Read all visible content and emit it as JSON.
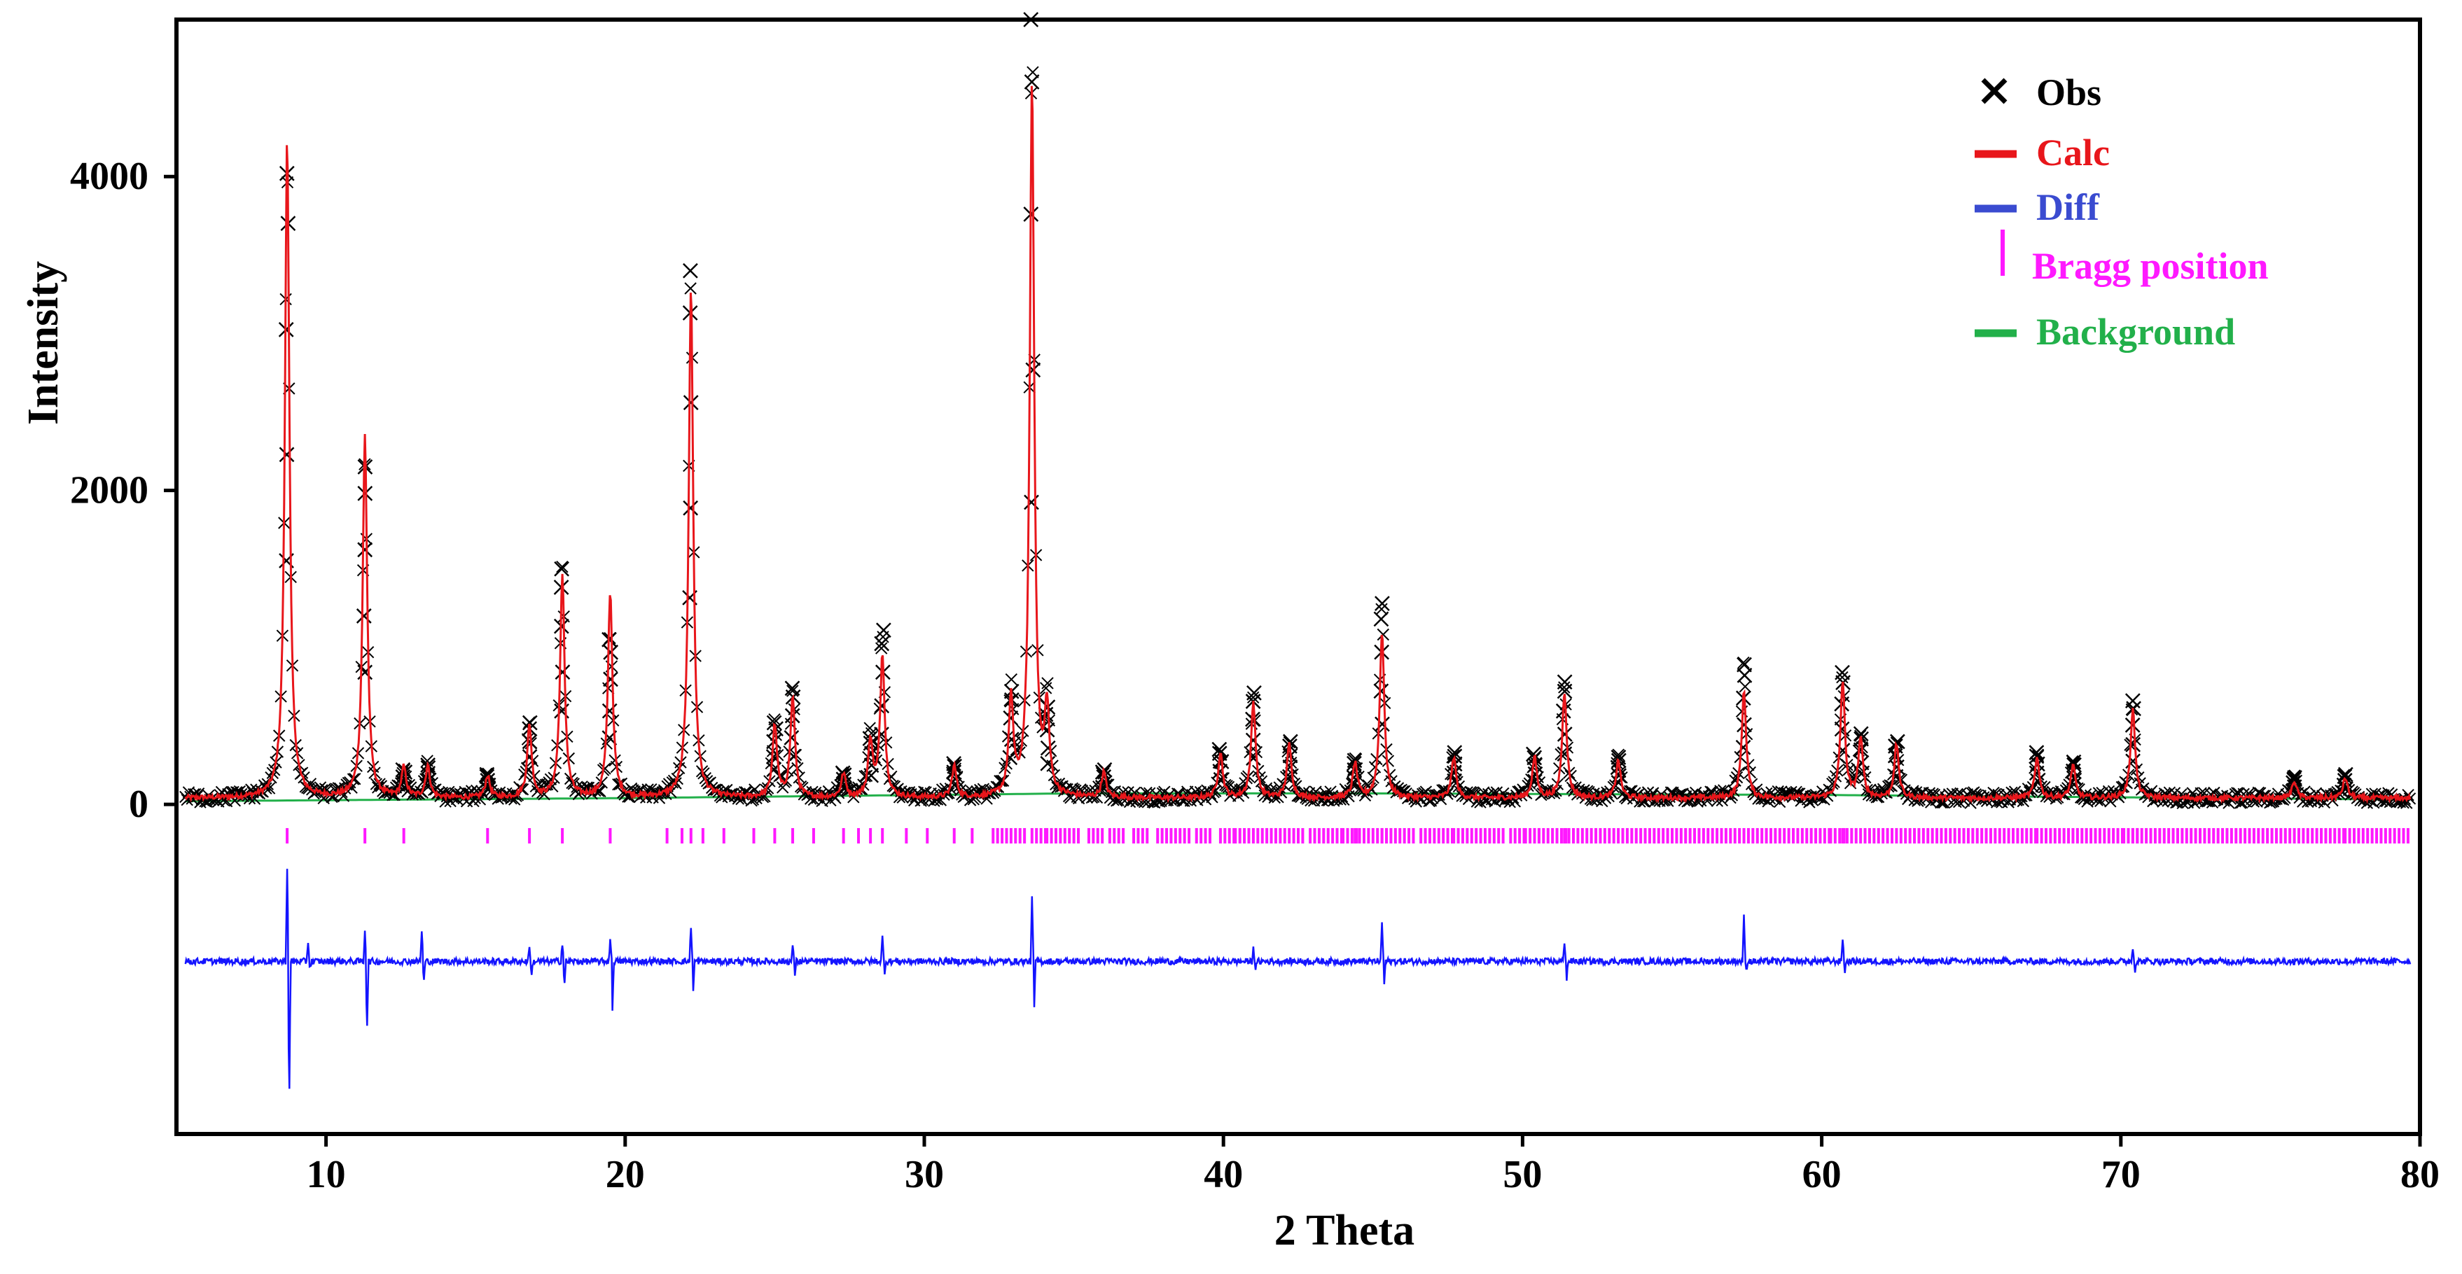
{
  "chart_data": {
    "type": "line",
    "xlabel": "2 Theta",
    "ylabel": "Intensity",
    "xlim": [
      5,
      80
    ],
    "ylim": [
      -2100,
      5000
    ],
    "x_ticks": [
      10,
      20,
      30,
      40,
      50,
      60,
      70,
      80
    ],
    "y_ticks": [
      0,
      2000,
      4000
    ],
    "legend": {
      "position": "top-right",
      "entries": [
        {
          "label": "Obs",
          "color": "#000000",
          "marker": "x"
        },
        {
          "label": "Calc",
          "color": "#e8161b",
          "marker": "line"
        },
        {
          "label": "Diff",
          "color": "#3a4bd0",
          "marker": "line"
        },
        {
          "label": "Bragg position",
          "color": "#ff19ff",
          "marker": "vbar"
        },
        {
          "label": "Background",
          "color": "#22b04a",
          "marker": "line"
        }
      ]
    },
    "series_colors": {
      "obs": "#000000",
      "calc": "#e8161b",
      "diff": "#1414ff",
      "bragg": "#ff19ff",
      "background": "#22b04a"
    },
    "baseline_intensity": 40,
    "background_levels": {
      "x": [
        5,
        20,
        30,
        35,
        45,
        60,
        80
      ],
      "y": [
        20,
        40,
        60,
        70,
        70,
        60,
        30
      ]
    },
    "peaks": [
      {
        "x": 8.7,
        "obs": 4020,
        "calc": 4250
      },
      {
        "x": 11.3,
        "obs": 2150,
        "calc": 2350
      },
      {
        "x": 12.6,
        "obs": 220,
        "calc": 230
      },
      {
        "x": 13.4,
        "obs": 250,
        "calc": 240
      },
      {
        "x": 15.4,
        "obs": 190,
        "calc": 180
      },
      {
        "x": 16.8,
        "obs": 520,
        "calc": 500
      },
      {
        "x": 17.9,
        "obs": 1500,
        "calc": 1450
      },
      {
        "x": 19.5,
        "obs": 1050,
        "calc": 1350
      },
      {
        "x": 22.2,
        "obs": 3400,
        "calc": 3300
      },
      {
        "x": 25.0,
        "obs": 520,
        "calc": 500
      },
      {
        "x": 25.6,
        "obs": 740,
        "calc": 680
      },
      {
        "x": 27.3,
        "obs": 200,
        "calc": 190
      },
      {
        "x": 28.2,
        "obs": 420,
        "calc": 400
      },
      {
        "x": 28.6,
        "obs": 1110,
        "calc": 950
      },
      {
        "x": 31.0,
        "obs": 260,
        "calc": 240
      },
      {
        "x": 32.9,
        "obs": 720,
        "calc": 650
      },
      {
        "x": 33.6,
        "obs": 5000,
        "calc": 4600
      },
      {
        "x": 34.1,
        "obs": 620,
        "calc": 580
      },
      {
        "x": 36.0,
        "obs": 220,
        "calc": 200
      },
      {
        "x": 39.9,
        "obs": 350,
        "calc": 330
      },
      {
        "x": 41.0,
        "obs": 710,
        "calc": 650
      },
      {
        "x": 42.2,
        "obs": 400,
        "calc": 380
      },
      {
        "x": 44.4,
        "obs": 280,
        "calc": 260
      },
      {
        "x": 45.3,
        "obs": 1280,
        "calc": 1100
      },
      {
        "x": 47.7,
        "obs": 330,
        "calc": 300
      },
      {
        "x": 50.4,
        "obs": 320,
        "calc": 300
      },
      {
        "x": 51.4,
        "obs": 780,
        "calc": 720
      },
      {
        "x": 53.2,
        "obs": 300,
        "calc": 280
      },
      {
        "x": 57.4,
        "obs": 890,
        "calc": 720
      },
      {
        "x": 60.7,
        "obs": 840,
        "calc": 780
      },
      {
        "x": 61.3,
        "obs": 450,
        "calc": 420
      },
      {
        "x": 62.5,
        "obs": 400,
        "calc": 380
      },
      {
        "x": 67.2,
        "obs": 330,
        "calc": 300
      },
      {
        "x": 68.4,
        "obs": 270,
        "calc": 250
      },
      {
        "x": 70.4,
        "obs": 660,
        "calc": 610
      },
      {
        "x": 75.8,
        "obs": 170,
        "calc": 150
      },
      {
        "x": 77.5,
        "obs": 190,
        "calc": 170
      }
    ],
    "bragg_positions": [
      8.7,
      11.3,
      12.6,
      15.4,
      16.8,
      17.9,
      19.5,
      21.4,
      21.9,
      22.2,
      22.6,
      23.3,
      24.3,
      25.0,
      25.6,
      26.3,
      27.3,
      27.8,
      28.2,
      28.6,
      29.4,
      30.1,
      31.0,
      31.6,
      32.3,
      32.9,
      33.6,
      34.1,
      34.7,
      35.5,
      36.2,
      37.0,
      37.8,
      38.4,
      39.1,
      39.9,
      40.4,
      41.0,
      41.6,
      42.2,
      42.9,
      43.5,
      44.0,
      44.4,
      45.0,
      45.3,
      45.9,
      46.6,
      47.2,
      47.7,
      48.3,
      48.9,
      49.6,
      50.1,
      50.4,
      51.0,
      51.4,
      52.0,
      52.6,
      53.2,
      53.8,
      54.4,
      55.0,
      55.6,
      56.2,
      56.8,
      57.4,
      58.0,
      58.6,
      59.2,
      59.8,
      60.3,
      60.7,
      61.3,
      61.9,
      62.5,
      63.1,
      63.7,
      64.3,
      64.9,
      65.5,
      66.1,
      66.7,
      67.2,
      67.8,
      68.4,
      69.0,
      69.6,
      70.1,
      70.4,
      71.0,
      71.6,
      72.2,
      72.8,
      73.4,
      74.0,
      74.6,
      75.2,
      75.8,
      76.4,
      77.0,
      77.5,
      78.1,
      78.7,
      79.3
    ],
    "bragg_row_y": -200,
    "diff_offset": -1000,
    "diff_spikes": [
      {
        "x": 8.7,
        "up": 600,
        "down": 900
      },
      {
        "x": 9.4,
        "up": 130,
        "down": 40
      },
      {
        "x": 11.3,
        "up": 200,
        "down": 450
      },
      {
        "x": 13.2,
        "up": 200,
        "down": 130
      },
      {
        "x": 16.8,
        "up": 100,
        "down": 100
      },
      {
        "x": 17.9,
        "up": 120,
        "down": 150
      },
      {
        "x": 19.5,
        "up": 150,
        "down": 350
      },
      {
        "x": 22.2,
        "up": 230,
        "down": 220
      },
      {
        "x": 25.6,
        "up": 90,
        "down": 90
      },
      {
        "x": 28.6,
        "up": 150,
        "down": 70
      },
      {
        "x": 33.6,
        "up": 400,
        "down": 320
      },
      {
        "x": 41.0,
        "up": 90,
        "down": 80
      },
      {
        "x": 45.3,
        "up": 250,
        "down": 160
      },
      {
        "x": 51.4,
        "up": 130,
        "down": 130
      },
      {
        "x": 57.4,
        "up": 280,
        "down": 70
      },
      {
        "x": 60.7,
        "up": 150,
        "down": 80
      },
      {
        "x": 70.4,
        "up": 90,
        "down": 70
      }
    ]
  }
}
